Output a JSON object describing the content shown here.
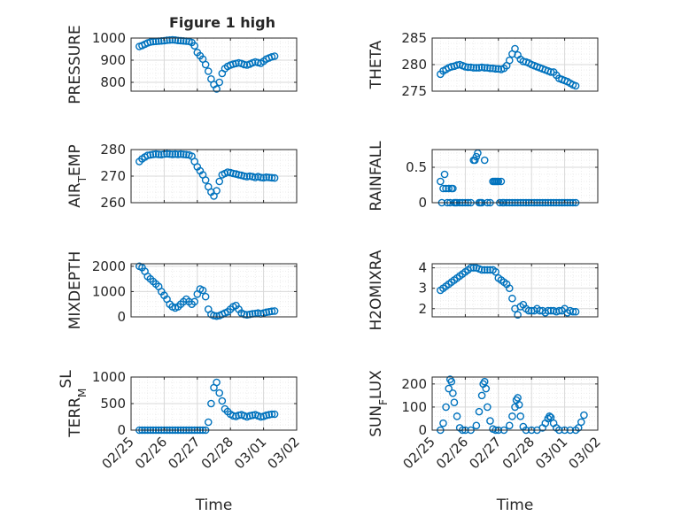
{
  "figure": {
    "title": "Figure 1 high"
  },
  "style": {
    "marker_color": "#0072BD",
    "axes_color": "#262626",
    "grid_color": "#d9d9d9",
    "background": "#ffffff"
  },
  "chart_data": [
    {
      "id": "pressure",
      "type": "scatter",
      "title": "Figure 1 high",
      "ylabel_parts": [
        {
          "t": "PRESSURE"
        }
      ],
      "ylim": [
        760,
        1000
      ],
      "yticks": [
        800,
        900,
        1000
      ],
      "xlim": [
        "02/25",
        "03/02"
      ],
      "xlabel": "",
      "xtick_labels_shown": false,
      "x": [
        "02/25 06:00",
        "02/25 08:00",
        "02/25 10:00",
        "02/25 12:00",
        "02/25 14:00",
        "02/25 16:00",
        "02/25 18:00",
        "02/25 20:00",
        "02/25 22:00",
        "02/26 00:00",
        "02/26 02:00",
        "02/26 04:00",
        "02/26 06:00",
        "02/26 08:00",
        "02/26 10:00",
        "02/26 12:00",
        "02/26 14:00",
        "02/26 16:00",
        "02/26 18:00",
        "02/26 20:00",
        "02/26 22:00",
        "02/27 00:00",
        "02/27 02:00",
        "02/27 04:00",
        "02/27 06:00",
        "02/27 08:00",
        "02/27 10:00",
        "02/27 12:00",
        "02/27 14:00",
        "02/27 16:00",
        "02/27 18:00",
        "02/27 20:00",
        "02/27 22:00",
        "02/28 00:00",
        "02/28 02:00",
        "02/28 04:00",
        "02/28 06:00",
        "02/28 08:00",
        "02/28 10:00",
        "02/28 12:00",
        "02/28 14:00",
        "02/28 16:00",
        "02/28 18:00",
        "02/28 20:00",
        "02/28 22:00",
        "03/01 00:00",
        "03/01 02:00",
        "03/01 04:00",
        "03/01 06:00",
        "03/01 08:00"
      ],
      "y": [
        962,
        966,
        972,
        978,
        982,
        984,
        985,
        986,
        987,
        988,
        990,
        991,
        992,
        991,
        989,
        988,
        987,
        986,
        985,
        980,
        965,
        935,
        920,
        905,
        880,
        850,
        815,
        790,
        770,
        800,
        840,
        862,
        872,
        878,
        882,
        885,
        888,
        885,
        880,
        878,
        882,
        888,
        892,
        889,
        886,
        895,
        905,
        910,
        915,
        918
      ]
    },
    {
      "id": "theta",
      "type": "scatter",
      "ylabel_parts": [
        {
          "t": "THETA"
        }
      ],
      "ylim": [
        275,
        285
      ],
      "yticks": [
        275,
        280,
        285
      ],
      "xlim": [
        "02/25",
        "03/02"
      ],
      "xlabel": "",
      "xtick_labels_shown": false,
      "x": [
        "02/25 06:00",
        "02/25 08:00",
        "02/25 10:00",
        "02/25 12:00",
        "02/25 14:00",
        "02/25 16:00",
        "02/25 18:00",
        "02/25 20:00",
        "02/25 22:00",
        "02/26 00:00",
        "02/26 02:00",
        "02/26 04:00",
        "02/26 06:00",
        "02/26 08:00",
        "02/26 10:00",
        "02/26 12:00",
        "02/26 14:00",
        "02/26 16:00",
        "02/26 18:00",
        "02/26 20:00",
        "02/26 22:00",
        "02/27 00:00",
        "02/27 02:00",
        "02/27 04:00",
        "02/27 06:00",
        "02/27 08:00",
        "02/27 10:00",
        "02/27 12:00",
        "02/27 14:00",
        "02/27 16:00",
        "02/27 18:00",
        "02/27 20:00",
        "02/27 22:00",
        "02/28 00:00",
        "02/28 02:00",
        "02/28 04:00",
        "02/28 06:00",
        "02/28 08:00",
        "02/28 10:00",
        "02/28 12:00",
        "02/28 14:00",
        "02/28 16:00",
        "02/28 18:00",
        "02/28 20:00",
        "02/28 22:00",
        "03/01 00:00",
        "03/01 02:00",
        "03/01 04:00",
        "03/01 06:00",
        "03/01 08:00"
      ],
      "y": [
        278.2,
        278.8,
        279.1,
        279.4,
        279.6,
        279.7,
        279.9,
        280.0,
        279.8,
        279.6,
        279.5,
        279.5,
        279.4,
        279.4,
        279.4,
        279.5,
        279.4,
        279.4,
        279.3,
        279.3,
        279.2,
        279.2,
        279.1,
        279.3,
        279.8,
        280.8,
        282.0,
        283.0,
        281.8,
        281.0,
        280.6,
        280.5,
        280.3,
        280.0,
        279.8,
        279.6,
        279.4,
        279.2,
        279.0,
        278.8,
        278.6,
        278.6,
        278.0,
        277.4,
        277.2,
        277.0,
        276.8,
        276.5,
        276.2,
        276.0
      ]
    },
    {
      "id": "airtemp",
      "type": "scatter",
      "ylabel_parts": [
        {
          "t": "AIR"
        },
        {
          "t": "T",
          "sub": true
        },
        {
          "t": "EMP"
        }
      ],
      "ylim": [
        260,
        280
      ],
      "yticks": [
        260,
        270,
        280
      ],
      "xlim": [
        "02/25",
        "03/02"
      ],
      "xlabel": "",
      "xtick_labels_shown": false,
      "x": [
        "02/25 06:00",
        "02/25 08:00",
        "02/25 10:00",
        "02/25 12:00",
        "02/25 14:00",
        "02/25 16:00",
        "02/25 18:00",
        "02/25 20:00",
        "02/25 22:00",
        "02/26 00:00",
        "02/26 02:00",
        "02/26 04:00",
        "02/26 06:00",
        "02/26 08:00",
        "02/26 10:00",
        "02/26 12:00",
        "02/26 14:00",
        "02/26 16:00",
        "02/26 18:00",
        "02/26 20:00",
        "02/26 22:00",
        "02/27 00:00",
        "02/27 02:00",
        "02/27 04:00",
        "02/27 06:00",
        "02/27 08:00",
        "02/27 10:00",
        "02/27 12:00",
        "02/27 14:00",
        "02/27 16:00",
        "02/27 18:00",
        "02/27 20:00",
        "02/27 22:00",
        "02/28 00:00",
        "02/28 02:00",
        "02/28 04:00",
        "02/28 06:00",
        "02/28 08:00",
        "02/28 10:00",
        "02/28 12:00",
        "02/28 14:00",
        "02/28 16:00",
        "02/28 18:00",
        "02/28 20:00",
        "02/28 22:00",
        "03/01 00:00",
        "03/01 02:00",
        "03/01 04:00",
        "03/01 06:00",
        "03/01 08:00"
      ],
      "y": [
        275.5,
        276.5,
        277.2,
        277.8,
        278.0,
        278.2,
        278.3,
        278.2,
        278.1,
        278.3,
        278.4,
        278.3,
        278.2,
        278.3,
        278.2,
        278.3,
        278.2,
        278.1,
        278.0,
        277.5,
        275.5,
        273.5,
        272.0,
        270.5,
        268.5,
        266.0,
        264.0,
        262.5,
        264.5,
        268.0,
        270.5,
        271.0,
        271.5,
        271.3,
        271.0,
        270.8,
        270.5,
        270.3,
        270.0,
        269.8,
        270.0,
        269.8,
        269.5,
        269.8,
        269.5,
        269.4,
        269.6,
        269.5,
        269.4,
        269.3
      ]
    },
    {
      "id": "rainfall",
      "type": "scatter",
      "ylabel_parts": [
        {
          "t": "RAINFALL"
        }
      ],
      "ylim": [
        0,
        0.75
      ],
      "yticks": [
        0,
        0.5
      ],
      "xlim": [
        "02/25",
        "03/02"
      ],
      "xlabel": "",
      "xtick_labels_shown": false,
      "x": [
        "02/25 06:00",
        "02/25 07:00",
        "02/25 08:00",
        "02/25 09:00",
        "02/25 10:00",
        "02/25 11:00",
        "02/25 12:00",
        "02/25 13:00",
        "02/25 14:00",
        "02/25 15:00",
        "02/25 16:00",
        "02/25 17:00",
        "02/25 18:00",
        "02/25 20:00",
        "02/25 22:00",
        "02/26 00:00",
        "02/26 02:00",
        "02/26 04:00",
        "02/26 06:00",
        "02/26 07:00",
        "02/26 08:00",
        "02/26 09:00",
        "02/26 10:00",
        "02/26 11:00",
        "02/26 12:00",
        "02/26 14:00",
        "02/26 16:00",
        "02/26 18:00",
        "02/26 20:00",
        "02/26 21:00",
        "02/26 22:00",
        "02/26 23:00",
        "02/27 00:00",
        "02/27 01:00",
        "02/27 02:00",
        "02/27 03:00",
        "02/27 04:00",
        "02/27 06:00",
        "02/27 08:00",
        "02/27 10:00",
        "02/27 12:00",
        "02/27 14:00",
        "02/27 16:00",
        "02/27 18:00",
        "02/27 20:00",
        "02/27 22:00",
        "02/28 00:00",
        "02/28 02:00",
        "02/28 04:00",
        "02/28 06:00",
        "02/28 08:00",
        "02/28 10:00",
        "02/28 12:00",
        "02/28 14:00",
        "02/28 16:00",
        "02/28 18:00",
        "02/28 20:00",
        "02/28 22:00",
        "03/01 00:00",
        "03/01 02:00",
        "03/01 04:00",
        "03/01 06:00",
        "03/01 08:00"
      ],
      "y": [
        0.3,
        0,
        0.2,
        0.4,
        0.2,
        0,
        0.2,
        0,
        0.2,
        0.2,
        0,
        0,
        0,
        0,
        0,
        0,
        0,
        0,
        0.6,
        0.6,
        0.65,
        0.7,
        0,
        0,
        0,
        0.6,
        0,
        0,
        0.3,
        0.3,
        0.3,
        0.3,
        0.3,
        0,
        0.3,
        0,
        0,
        0,
        0,
        0,
        0,
        0,
        0,
        0,
        0,
        0,
        0,
        0,
        0,
        0,
        0,
        0,
        0,
        0,
        0,
        0,
        0,
        0,
        0,
        0,
        0,
        0,
        0
      ]
    },
    {
      "id": "mixdepth",
      "type": "scatter",
      "ylabel_parts": [
        {
          "t": "MIXDEPTH"
        }
      ],
      "ylim": [
        0,
        2100
      ],
      "yticks": [
        0,
        1000,
        2000
      ],
      "xlim": [
        "02/25",
        "03/02"
      ],
      "xlabel": "",
      "xtick_labels_shown": false,
      "x": [
        "02/25 06:00",
        "02/25 08:00",
        "02/25 10:00",
        "02/25 12:00",
        "02/25 14:00",
        "02/25 16:00",
        "02/25 18:00",
        "02/25 20:00",
        "02/25 22:00",
        "02/26 00:00",
        "02/26 02:00",
        "02/26 04:00",
        "02/26 06:00",
        "02/26 08:00",
        "02/26 10:00",
        "02/26 12:00",
        "02/26 14:00",
        "02/26 16:00",
        "02/26 18:00",
        "02/26 20:00",
        "02/26 22:00",
        "02/27 00:00",
        "02/27 02:00",
        "02/27 04:00",
        "02/27 06:00",
        "02/27 08:00",
        "02/27 10:00",
        "02/27 12:00",
        "02/27 14:00",
        "02/27 16:00",
        "02/27 18:00",
        "02/27 20:00",
        "02/27 22:00",
        "02/28 00:00",
        "02/28 02:00",
        "02/28 04:00",
        "02/28 06:00",
        "02/28 08:00",
        "02/28 10:00",
        "02/28 12:00",
        "02/28 14:00",
        "02/28 16:00",
        "02/28 18:00",
        "02/28 20:00",
        "02/28 22:00",
        "03/01 00:00",
        "03/01 02:00",
        "03/01 04:00",
        "03/01 06:00",
        "03/01 08:00"
      ],
      "y": [
        2000,
        1950,
        1800,
        1600,
        1500,
        1400,
        1300,
        1200,
        1000,
        850,
        700,
        500,
        400,
        350,
        400,
        500,
        600,
        700,
        600,
        500,
        600,
        900,
        1100,
        1050,
        800,
        300,
        100,
        50,
        30,
        50,
        100,
        150,
        200,
        300,
        400,
        450,
        300,
        150,
        100,
        80,
        100,
        120,
        130,
        150,
        120,
        150,
        180,
        200,
        220,
        230
      ]
    },
    {
      "id": "h2omixra",
      "type": "scatter",
      "ylabel_parts": [
        {
          "t": "H2OMIXRA"
        }
      ],
      "ylim": [
        1.6,
        4.2
      ],
      "yticks": [
        2,
        3,
        4
      ],
      "xlim": [
        "02/25",
        "03/02"
      ],
      "xlabel": "",
      "xtick_labels_shown": false,
      "x": [
        "02/25 06:00",
        "02/25 08:00",
        "02/25 10:00",
        "02/25 12:00",
        "02/25 14:00",
        "02/25 16:00",
        "02/25 18:00",
        "02/25 20:00",
        "02/25 22:00",
        "02/26 00:00",
        "02/26 02:00",
        "02/26 04:00",
        "02/26 06:00",
        "02/26 08:00",
        "02/26 10:00",
        "02/26 12:00",
        "02/26 14:00",
        "02/26 16:00",
        "02/26 18:00",
        "02/26 20:00",
        "02/26 22:00",
        "02/27 00:00",
        "02/27 02:00",
        "02/27 04:00",
        "02/27 06:00",
        "02/27 08:00",
        "02/27 10:00",
        "02/27 12:00",
        "02/27 14:00",
        "02/27 16:00",
        "02/27 18:00",
        "02/27 20:00",
        "02/27 22:00",
        "02/28 00:00",
        "02/28 02:00",
        "02/28 04:00",
        "02/28 06:00",
        "02/28 08:00",
        "02/28 10:00",
        "02/28 12:00",
        "02/28 14:00",
        "02/28 16:00",
        "02/28 18:00",
        "02/28 20:00",
        "02/28 22:00",
        "03/01 00:00",
        "03/01 02:00",
        "03/01 04:00",
        "03/01 06:00",
        "03/01 08:00"
      ],
      "y": [
        2.9,
        3.0,
        3.1,
        3.2,
        3.3,
        3.4,
        3.5,
        3.6,
        3.7,
        3.8,
        3.9,
        4.0,
        4.0,
        4.0,
        3.95,
        3.9,
        3.9,
        3.9,
        3.9,
        3.9,
        3.8,
        3.5,
        3.4,
        3.3,
        3.2,
        3.0,
        2.5,
        2.0,
        1.7,
        2.1,
        2.2,
        2.0,
        1.9,
        1.9,
        1.9,
        2.0,
        1.9,
        1.9,
        1.8,
        1.9,
        1.9,
        1.9,
        1.85,
        1.9,
        1.9,
        2.0,
        1.8,
        1.9,
        1.85,
        1.85
      ]
    },
    {
      "id": "terrmsl",
      "type": "scatter",
      "ylabel_parts": [
        {
          "t": "TERR"
        },
        {
          "t": "M",
          "sub": true
        },
        {
          "t": "SL",
          "sup": true
        }
      ],
      "ylim": [
        0,
        1000
      ],
      "yticks": [
        0,
        500,
        1000
      ],
      "xlim": [
        "02/25",
        "03/02"
      ],
      "xlabel": "Time",
      "xtick_labels_shown": true,
      "x": [
        "02/25 06:00",
        "02/25 08:00",
        "02/25 10:00",
        "02/25 12:00",
        "02/25 14:00",
        "02/25 16:00",
        "02/25 18:00",
        "02/25 20:00",
        "02/25 22:00",
        "02/26 00:00",
        "02/26 02:00",
        "02/26 04:00",
        "02/26 06:00",
        "02/26 08:00",
        "02/26 10:00",
        "02/26 12:00",
        "02/26 14:00",
        "02/26 16:00",
        "02/26 18:00",
        "02/26 20:00",
        "02/26 22:00",
        "02/27 00:00",
        "02/27 02:00",
        "02/27 04:00",
        "02/27 06:00",
        "02/27 08:00",
        "02/27 10:00",
        "02/27 12:00",
        "02/27 14:00",
        "02/27 16:00",
        "02/27 18:00",
        "02/27 20:00",
        "02/27 22:00",
        "02/28 00:00",
        "02/28 02:00",
        "02/28 04:00",
        "02/28 06:00",
        "02/28 08:00",
        "02/28 10:00",
        "02/28 12:00",
        "02/28 14:00",
        "02/28 16:00",
        "02/28 18:00",
        "02/28 20:00",
        "02/28 22:00",
        "03/01 00:00",
        "03/01 02:00",
        "03/01 04:00",
        "03/01 06:00",
        "03/01 08:00"
      ],
      "y": [
        0,
        0,
        0,
        0,
        0,
        0,
        0,
        0,
        0,
        0,
        0,
        0,
        0,
        0,
        0,
        0,
        0,
        0,
        0,
        0,
        0,
        0,
        0,
        0,
        0,
        150,
        500,
        800,
        900,
        700,
        550,
        400,
        350,
        300,
        270,
        260,
        280,
        290,
        270,
        250,
        270,
        280,
        290,
        270,
        250,
        260,
        280,
        290,
        300,
        300
      ]
    },
    {
      "id": "sunflux",
      "type": "scatter",
      "ylabel_parts": [
        {
          "t": "SUN"
        },
        {
          "t": "F",
          "sub": true
        },
        {
          "t": "LUX"
        }
      ],
      "ylim": [
        0,
        230
      ],
      "yticks": [
        0,
        100,
        200
      ],
      "xlim": [
        "02/25",
        "03/02"
      ],
      "xlabel": "Time",
      "xtick_labels_shown": true,
      "x": [
        "02/25 06:00",
        "02/25 08:00",
        "02/25 10:00",
        "02/25 12:00",
        "02/25 13:00",
        "02/25 14:00",
        "02/25 15:00",
        "02/25 16:00",
        "02/25 18:00",
        "02/25 20:00",
        "02/25 22:00",
        "02/26 00:00",
        "02/26 04:00",
        "02/26 08:00",
        "02/26 10:00",
        "02/26 12:00",
        "02/26 13:00",
        "02/26 14:00",
        "02/26 15:00",
        "02/26 16:00",
        "02/26 18:00",
        "02/26 20:00",
        "02/26 22:00",
        "02/27 00:00",
        "02/27 04:00",
        "02/27 08:00",
        "02/27 10:00",
        "02/27 12:00",
        "02/27 13:00",
        "02/27 14:00",
        "02/27 15:00",
        "02/27 16:00",
        "02/27 18:00",
        "02/27 20:00",
        "02/28 00:00",
        "02/28 04:00",
        "02/28 08:00",
        "02/28 10:00",
        "02/28 12:00",
        "02/28 13:00",
        "02/28 14:00",
        "02/28 16:00",
        "02/28 18:00",
        "02/28 20:00",
        "03/01 00:00",
        "03/01 04:00",
        "03/01 08:00",
        "03/01 10:00",
        "03/01 12:00",
        "03/01 14:00"
      ],
      "y": [
        0,
        30,
        100,
        180,
        220,
        210,
        160,
        120,
        60,
        10,
        0,
        0,
        0,
        20,
        80,
        150,
        200,
        210,
        180,
        100,
        40,
        5,
        0,
        0,
        0,
        20,
        60,
        100,
        130,
        140,
        110,
        60,
        15,
        0,
        0,
        0,
        10,
        30,
        50,
        60,
        55,
        30,
        10,
        0,
        0,
        0,
        0,
        10,
        35,
        65
      ]
    }
  ]
}
